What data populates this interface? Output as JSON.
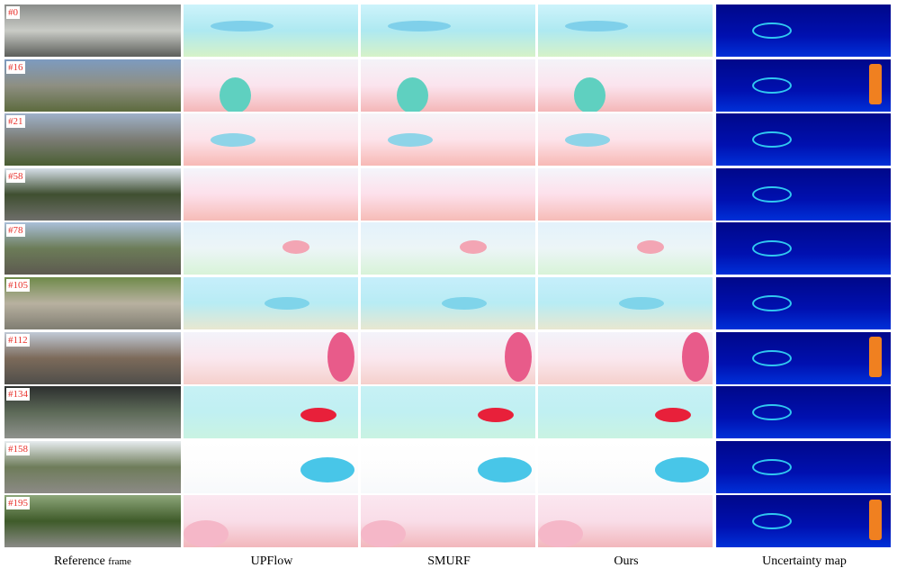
{
  "figure": {
    "rows": [
      {
        "label": "#0"
      },
      {
        "label": "#16"
      },
      {
        "label": "#21"
      },
      {
        "label": "#58"
      },
      {
        "label": "#78"
      },
      {
        "label": "#105"
      },
      {
        "label": "#112"
      },
      {
        "label": "#134"
      },
      {
        "label": "#158"
      },
      {
        "label": "#195"
      }
    ],
    "reference_caption": {
      "main": "Reference",
      "small": "frame"
    },
    "captions": [
      "UPFlow",
      "SMURF",
      "Ours",
      "Uncertainty map"
    ]
  }
}
